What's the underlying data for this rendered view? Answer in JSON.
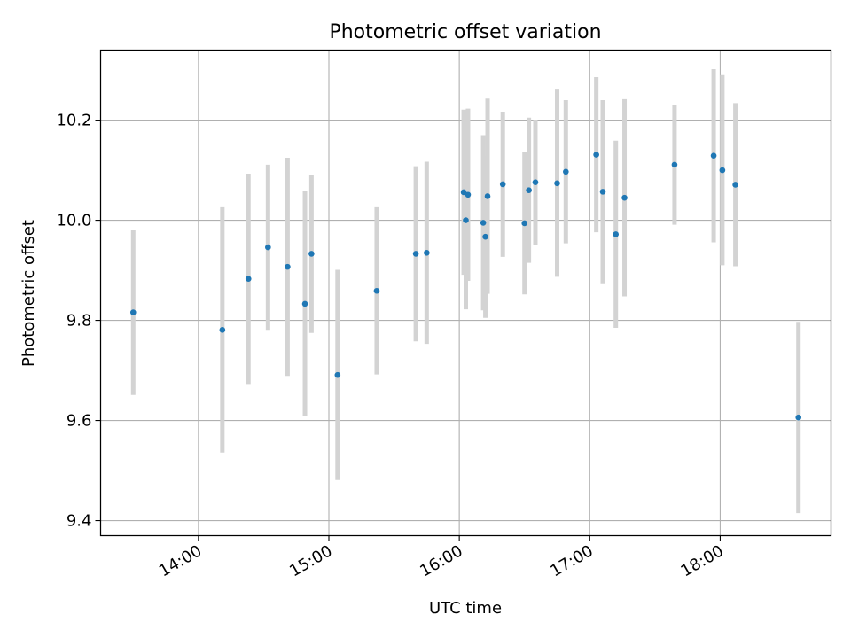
{
  "chart_data": {
    "type": "scatter",
    "title": "Photometric offset variation",
    "xlabel": "UTC time",
    "ylabel": "Photometric offset",
    "xlim": [
      "13:15",
      "18:51"
    ],
    "ylim": [
      9.37,
      10.34
    ],
    "grid": true,
    "x_ticks": [
      "14:00",
      "15:00",
      "16:00",
      "17:00",
      "18:00"
    ],
    "y_ticks": [
      "9.4",
      "9.6",
      "9.8",
      "10.0",
      "10.2"
    ],
    "marker_color": "#1f77b4",
    "errorbar_color": "#d3d3d3",
    "points": [
      {
        "x": "13:30",
        "y": 9.816,
        "yerr": 0.165
      },
      {
        "x": "14:11",
        "y": 9.781,
        "yerr": 0.245
      },
      {
        "x": "14:23",
        "y": 9.883,
        "yerr": 0.21
      },
      {
        "x": "14:32",
        "y": 9.946,
        "yerr": 0.165
      },
      {
        "x": "14:41",
        "y": 9.907,
        "yerr": 0.218
      },
      {
        "x": "14:49",
        "y": 9.833,
        "yerr": 0.225
      },
      {
        "x": "14:52",
        "y": 9.933,
        "yerr": 0.158
      },
      {
        "x": "15:04",
        "y": 9.691,
        "yerr": 0.21
      },
      {
        "x": "15:22",
        "y": 9.859,
        "yerr": 0.167
      },
      {
        "x": "15:40",
        "y": 9.933,
        "yerr": 0.175
      },
      {
        "x": "15:45",
        "y": 9.935,
        "yerr": 0.182
      },
      {
        "x": "16:02",
        "y": 10.056,
        "yerr": 0.165
      },
      {
        "x": "16:03",
        "y": 10.0,
        "yerr": 0.178
      },
      {
        "x": "16:04",
        "y": 10.051,
        "yerr": 0.172
      },
      {
        "x": "16:11",
        "y": 9.995,
        "yerr": 0.175
      },
      {
        "x": "16:12",
        "y": 9.967,
        "yerr": 0.162
      },
      {
        "x": "16:13",
        "y": 10.048,
        "yerr": 0.195
      },
      {
        "x": "16:20",
        "y": 10.072,
        "yerr": 0.145
      },
      {
        "x": "16:30",
        "y": 9.994,
        "yerr": 0.142
      },
      {
        "x": "16:32",
        "y": 10.06,
        "yerr": 0.145
      },
      {
        "x": "16:35",
        "y": 10.076,
        "yerr": 0.125
      },
      {
        "x": "16:45",
        "y": 10.074,
        "yerr": 0.187
      },
      {
        "x": "16:49",
        "y": 10.097,
        "yerr": 0.143
      },
      {
        "x": "17:03",
        "y": 10.131,
        "yerr": 0.155
      },
      {
        "x": "17:06",
        "y": 10.057,
        "yerr": 0.183
      },
      {
        "x": "17:12",
        "y": 9.972,
        "yerr": 0.187
      },
      {
        "x": "17:16",
        "y": 10.045,
        "yerr": 0.197
      },
      {
        "x": "17:39",
        "y": 10.111,
        "yerr": 0.12
      },
      {
        "x": "17:57",
        "y": 10.129,
        "yerr": 0.173
      },
      {
        "x": "18:01",
        "y": 10.1,
        "yerr": 0.19
      },
      {
        "x": "18:07",
        "y": 10.071,
        "yerr": 0.163
      },
      {
        "x": "18:36",
        "y": 9.606,
        "yerr": 0.191
      }
    ]
  }
}
